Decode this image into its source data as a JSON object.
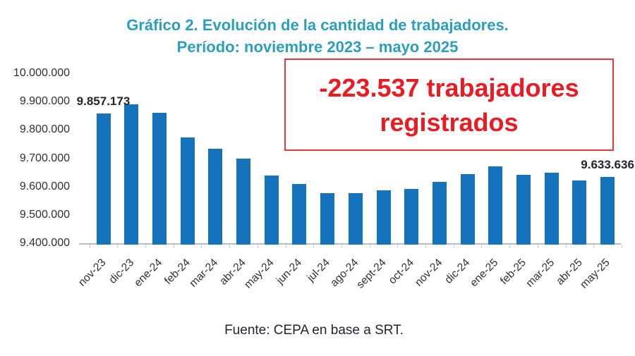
{
  "title": {
    "line1": "Gráfico 2. Evolución de la cantidad de trabajadores.",
    "line2": "Período: noviembre 2023 – mayo 2025"
  },
  "annotation": {
    "line1": "-223.537 trabajadores",
    "line2": "registrados"
  },
  "source": "Fuente: CEPA en base a SRT.",
  "colors": {
    "title": "#2B9EC0",
    "bar": "#1473BC",
    "annotation_red": "#EA1B22",
    "annotation_border": "#E8383C",
    "axis_line": "#B9BCC9",
    "label_dark": "#2F3035"
  },
  "chart_data": {
    "type": "bar",
    "title": "Gráfico 2. Evolución de la cantidad de trabajadores.",
    "subtitle": "Período: noviembre 2023 – mayo 2025",
    "categories": [
      "nov-23",
      "dic-23",
      "ene-24",
      "feb-24",
      "mar-24",
      "abr-24",
      "may-24",
      "jun-24",
      "jul-24",
      "ago-24",
      "sept-24",
      "oct-24",
      "nov-24",
      "dic-24",
      "ene-25",
      "feb-25",
      "mar-25",
      "abr-25",
      "may-25"
    ],
    "values": [
      9857173,
      9891000,
      9861000,
      9774000,
      9734000,
      9699000,
      9639000,
      9608000,
      9578000,
      9576000,
      9586000,
      9591000,
      9617000,
      9645000,
      9672000,
      9641000,
      9650000,
      9622000,
      9633636
    ],
    "ylim": [
      9400000,
      10000000
    ],
    "ytick_labels": [
      "10.000.000",
      "9.900.000",
      "9.800.000",
      "9.700.000",
      "9.600.000",
      "9.500.000",
      "9.400.000"
    ],
    "data_labels": [
      {
        "index": 0,
        "text": "9.857.173"
      },
      {
        "index": 18,
        "text": "9.633.636"
      }
    ],
    "grid": false,
    "legend": false,
    "bar_color": "#1473BC"
  }
}
